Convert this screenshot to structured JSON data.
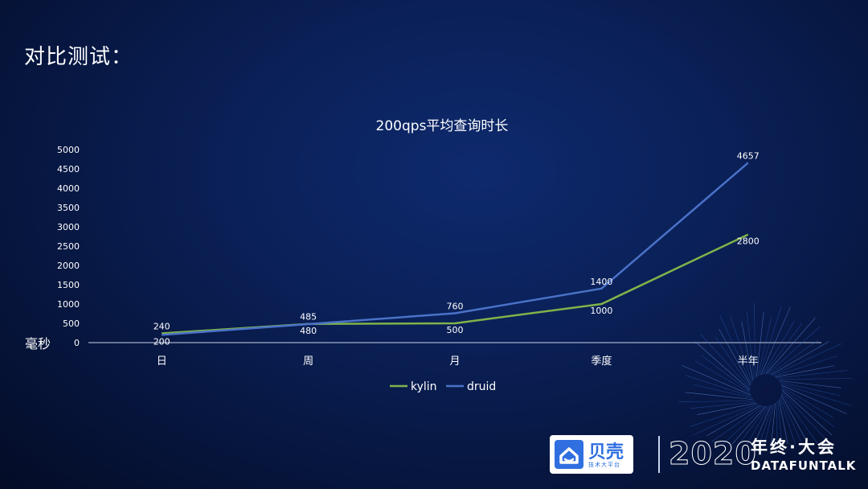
{
  "slide": {
    "title": "对比测试："
  },
  "chart_data": {
    "type": "line",
    "title": "200qps平均查询时长",
    "ylabel": "毫秒",
    "xlabel": "",
    "categories": [
      "日",
      "周",
      "月",
      "季度",
      "半年"
    ],
    "ylim": [
      0,
      5000
    ],
    "yticks": [
      0,
      500,
      1000,
      1500,
      2000,
      2500,
      3000,
      3500,
      4000,
      4500,
      5000
    ],
    "grid": false,
    "legend_position": "bottom",
    "series": [
      {
        "name": "kylin",
        "color": "#7fb34a",
        "values": [
          240,
          485,
          500,
          1000,
          2800
        ]
      },
      {
        "name": "druid",
        "color": "#4a72c8",
        "values": [
          200,
          480,
          760,
          1400,
          4657
        ]
      }
    ]
  },
  "branding": {
    "logo_name": "贝壳",
    "logo_sub": "技术大平台",
    "year": "2020",
    "event_name": "年终·大会",
    "event_en": "DATAFUNTALK"
  }
}
